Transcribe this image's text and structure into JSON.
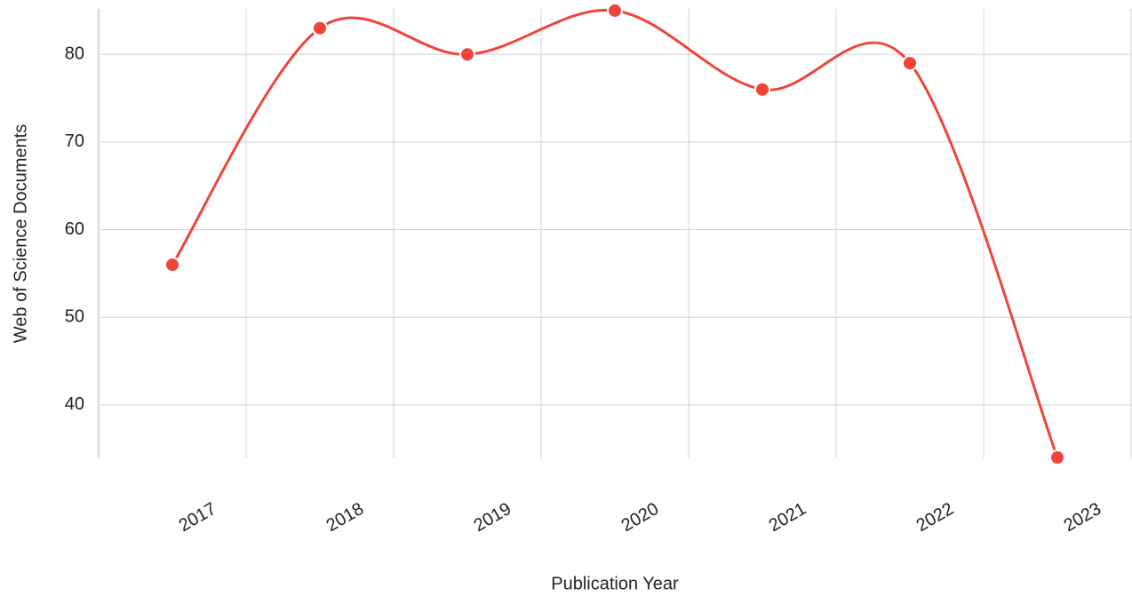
{
  "chart_data": {
    "type": "line",
    "x_label": "Publication Year",
    "y_label": "Web of Science Documents",
    "categories": [
      "2017",
      "2018",
      "2019",
      "2020",
      "2021",
      "2022",
      "2023"
    ],
    "values": [
      56,
      83,
      80,
      85,
      76,
      79,
      34
    ],
    "color": "#f04438",
    "ylim": [
      33.9,
      85.2
    ],
    "yticks": [
      40,
      50,
      60,
      70,
      80
    ],
    "grid": true
  }
}
